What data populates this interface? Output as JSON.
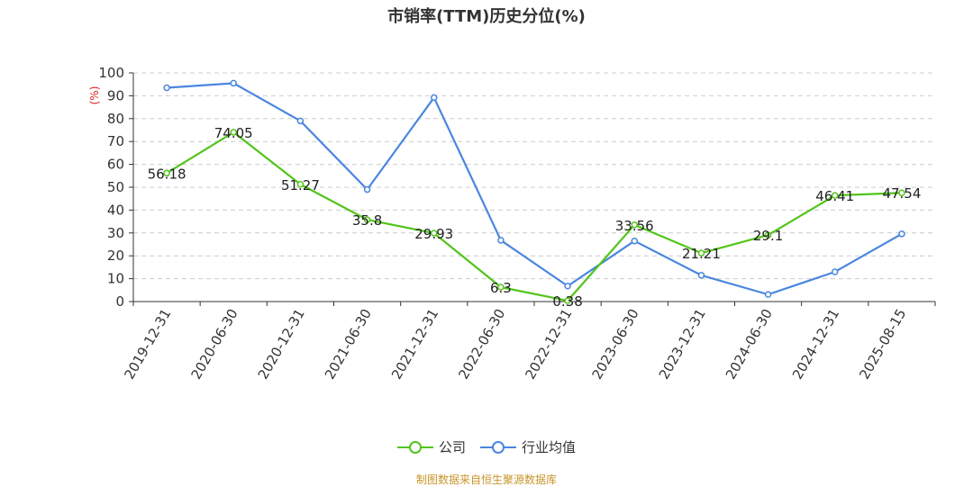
{
  "chart_data": {
    "type": "line",
    "title": "市销率(TTM)历史分位(%)",
    "ylabel": "(%)",
    "ylim": [
      0,
      100
    ],
    "yticks": [
      0,
      10,
      20,
      30,
      40,
      50,
      60,
      70,
      80,
      90,
      100
    ],
    "grid": true,
    "legend_position": "bottom",
    "categories": [
      "2019-12-31",
      "2020-06-30",
      "2020-12-31",
      "2021-06-30",
      "2021-12-31",
      "2022-06-30",
      "2022-12-31",
      "2023-06-30",
      "2023-12-31",
      "2024-06-30",
      "2024-12-31",
      "2025-08-15"
    ],
    "series": [
      {
        "name": "公司",
        "color": "#52c41a",
        "values": [
          56.18,
          74.05,
          51.27,
          35.8,
          29.93,
          6.3,
          0.38,
          33.56,
          21.21,
          29.1,
          46.41,
          47.54
        ],
        "labels": [
          "56.18",
          "74.05",
          "51.27",
          "35.8",
          "29.93",
          "6.3",
          "0.38",
          "33.56",
          "21.21",
          "29.1",
          "46.41",
          "47.54"
        ]
      },
      {
        "name": "行业均值",
        "color": "#4a86e0",
        "values": [
          93.5,
          95.5,
          79,
          49,
          89.2,
          26.8,
          6.8,
          26.5,
          11.5,
          3.1,
          13,
          29.6
        ]
      }
    ]
  },
  "source_text": "制图数据来自恒生聚源数据库"
}
